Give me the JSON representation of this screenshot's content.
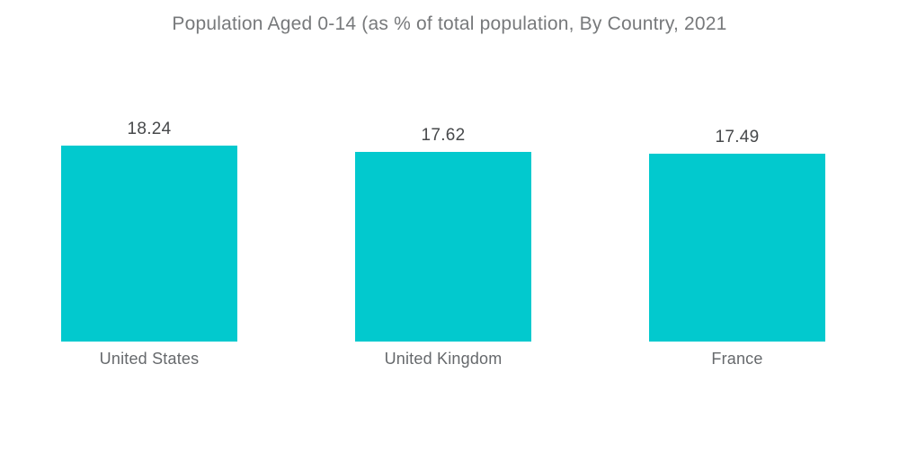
{
  "header": {
    "title": "Population Aged 0-14 (as % of total population, By Country, 2021"
  },
  "colors": {
    "background": "#FFFFFF",
    "bar": "#02C9CE",
    "title_text": "#77797B",
    "value_text": "#47494B",
    "category_text": "#66696C"
  },
  "chart_data": {
    "type": "bar",
    "title": "Population Aged 0-14 (as % of total population, By Country, 2021",
    "categories": [
      "United States",
      "United Kingdom",
      "France"
    ],
    "values": [
      18.24,
      17.62,
      17.49
    ],
    "value_labels": [
      "18.24",
      "17.62",
      "17.49"
    ],
    "xlabel": "",
    "ylabel": "",
    "ylim": [
      0,
      18.24
    ],
    "grid": false,
    "legend": false,
    "axes_visible": false,
    "bar_color": "#02C9CE",
    "value_label_position": "above-bar",
    "category_label_position": "below-bar"
  }
}
